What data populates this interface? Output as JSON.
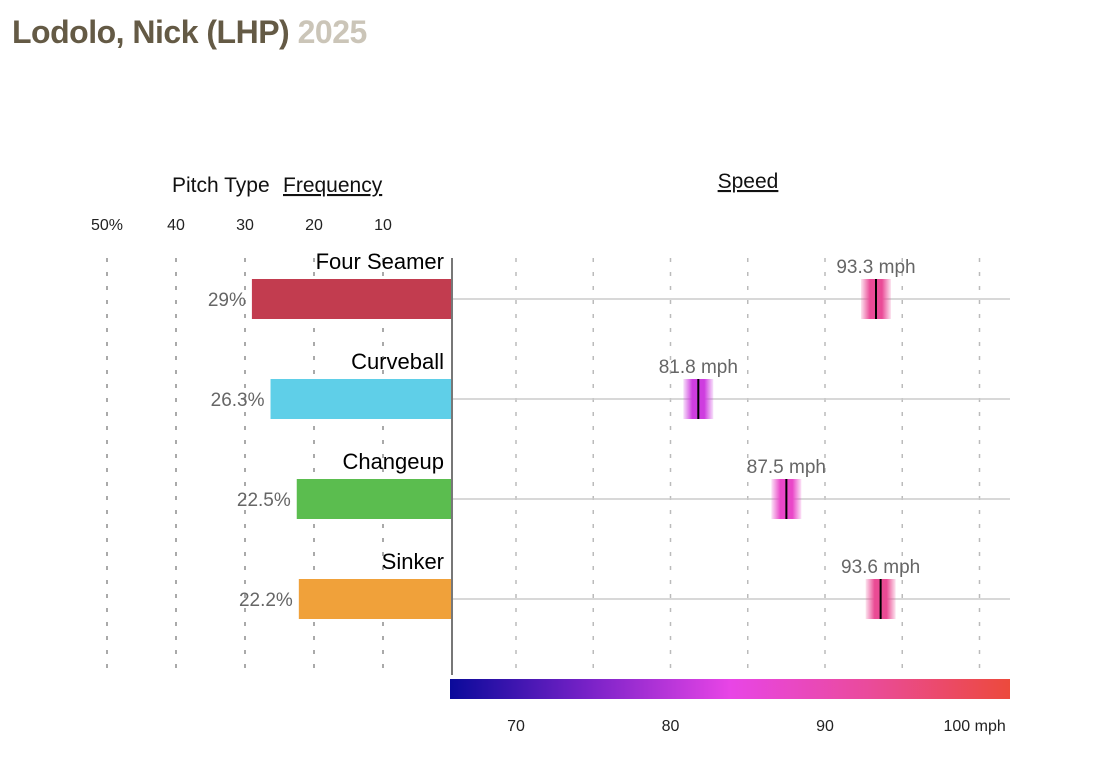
{
  "header": {
    "name": "Lodolo, Nick (LHP)",
    "year": "2025"
  },
  "chart_data": [
    {
      "type": "bar",
      "title_prefix": "Pitch Type",
      "title_link": "Frequency",
      "orientation": "horizontal-left",
      "xlim": [
        0,
        50
      ],
      "tick_labels": [
        "50%",
        "40",
        "30",
        "20",
        "10"
      ],
      "tick_values": [
        50,
        40,
        30,
        20,
        10
      ],
      "categories": [
        "Four Seamer",
        "Curveball",
        "Changeup",
        "Sinker"
      ],
      "values": [
        29,
        26.3,
        22.5,
        22.2
      ],
      "value_labels": [
        "29%",
        "26.3%",
        "22.5%",
        "22.2%"
      ],
      "colors": [
        "#c23c4f",
        "#5fcfe8",
        "#5bbd4f",
        "#f0a13a"
      ]
    },
    {
      "type": "scatter",
      "title": "Speed",
      "xlim": [
        65.85,
        102.05
      ],
      "grid_values": [
        70,
        75,
        80,
        85,
        90,
        95,
        100
      ],
      "tick_values": [
        70,
        80,
        90,
        100
      ],
      "tick_labels": [
        "70",
        "80",
        "90",
        "100 mph"
      ],
      "categories": [
        "Four Seamer",
        "Curveball",
        "Changeup",
        "Sinker"
      ],
      "values": [
        93.3,
        81.8,
        87.5,
        93.6
      ],
      "value_labels": [
        "93.3 mph",
        "81.8 mph",
        "87.5 mph",
        "93.6 mph"
      ],
      "colorscale": [
        "#0a0a9a",
        "#7a22c8",
        "#e845e6",
        "#ea4b9a",
        "#ec4a3c"
      ]
    }
  ]
}
